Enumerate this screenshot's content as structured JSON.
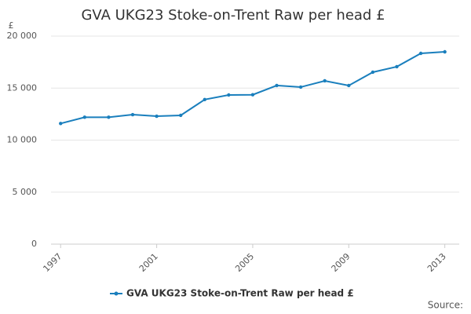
{
  "chart_data": {
    "type": "line",
    "title": "GVA UKG23 Stoke-on-Trent Raw per head £",
    "y_label": "£",
    "source": "Source:",
    "x": [
      1997,
      1998,
      1999,
      2000,
      2001,
      2002,
      2003,
      2004,
      2005,
      2006,
      2007,
      2008,
      2009,
      2010,
      2011,
      2012,
      2013
    ],
    "series": [
      {
        "name": "GVA UKG23 Stoke-on-Trent Raw per head £",
        "color": "#1a7fbd",
        "values": [
          11600,
          12200,
          12200,
          12450,
          12300,
          12380,
          13900,
          14340,
          14360,
          15250,
          15100,
          15700,
          15250,
          16530,
          17060,
          18340,
          18490
        ]
      }
    ],
    "xlim": [
      1996.6,
      2013.6
    ],
    "xticks": [
      1997,
      2001,
      2005,
      2009,
      2013
    ],
    "ylim": [
      0,
      20000
    ],
    "yticks": [
      0,
      {
        "value": 5000,
        "label": "5 000"
      },
      {
        "value": 10000,
        "label": "10 000"
      },
      {
        "value": 15000,
        "label": "15 000"
      },
      {
        "value": 20000,
        "label": "20 000"
      }
    ],
    "grid": true
  }
}
